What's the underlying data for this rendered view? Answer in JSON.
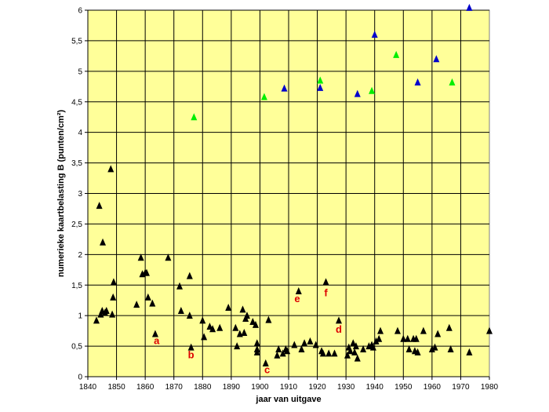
{
  "chart_data": {
    "type": "scatter",
    "title": "",
    "xlabel": "jaar van uitgave",
    "ylabel": "numerieke kaartbelasting B (punten/cm²)",
    "xlim": [
      1840,
      1980
    ],
    "ylim": [
      0,
      6
    ],
    "x_ticks": [
      1840,
      1850,
      1860,
      1870,
      1880,
      1890,
      1900,
      1910,
      1920,
      1930,
      1940,
      1950,
      1960,
      1970,
      1980
    ],
    "y_ticks": [
      0,
      0.5,
      1,
      1.5,
      2,
      2.5,
      3,
      3.5,
      4,
      4.5,
      5,
      5.5,
      6
    ],
    "y_tick_labels": [
      "0",
      "0,5",
      "1",
      "1,5",
      "2",
      "2,5",
      "3",
      "3,5",
      "4",
      "4,5",
      "5",
      "5,5",
      "6"
    ],
    "grid": "horizontal and vertical",
    "plot_background": "#ffff99",
    "marker": "triangle",
    "series": [
      {
        "color": "#000000",
        "points": [
          [
            1843,
            0.92
          ],
          [
            1844,
            2.8
          ],
          [
            1844.5,
            1.02
          ],
          [
            1845,
            1.08
          ],
          [
            1845.2,
            2.2
          ],
          [
            1846,
            1.05
          ],
          [
            1846.5,
            1.08
          ],
          [
            1848,
            3.4
          ],
          [
            1848.5,
            1.02
          ],
          [
            1848.8,
            1.3
          ],
          [
            1849,
            1.55
          ],
          [
            1857,
            1.18
          ],
          [
            1858.5,
            1.95
          ],
          [
            1859,
            1.68
          ],
          [
            1860,
            1.7
          ],
          [
            1860.5,
            1.7
          ],
          [
            1861,
            1.3
          ],
          [
            1862.5,
            1.2
          ],
          [
            1863.5,
            0.7
          ],
          [
            1868,
            1.95
          ],
          [
            1872,
            1.48
          ],
          [
            1872.5,
            1.08
          ],
          [
            1875.5,
            1.65
          ],
          [
            1875.5,
            1.0
          ],
          [
            1876,
            0.48
          ],
          [
            1880,
            0.92
          ],
          [
            1880.5,
            0.65
          ],
          [
            1882.5,
            0.82
          ],
          [
            1883.5,
            0.78
          ],
          [
            1886,
            0.8
          ],
          [
            1889,
            1.13
          ],
          [
            1891.5,
            0.8
          ],
          [
            1892,
            0.5
          ],
          [
            1893,
            0.7
          ],
          [
            1894,
            1.1
          ],
          [
            1894.5,
            0.72
          ],
          [
            1895,
            0.95
          ],
          [
            1895.5,
            1.0
          ],
          [
            1897.5,
            0.9
          ],
          [
            1898.5,
            0.85
          ],
          [
            1899,
            0.55
          ],
          [
            1899,
            0.45
          ],
          [
            1899,
            0.4
          ],
          [
            1902,
            0.22
          ],
          [
            1903,
            0.93
          ],
          [
            1906,
            0.35
          ],
          [
            1906.5,
            0.45
          ],
          [
            1908,
            0.38
          ],
          [
            1909,
            0.45
          ],
          [
            1909.5,
            0.42
          ],
          [
            1912,
            0.52
          ],
          [
            1913.5,
            1.4
          ],
          [
            1914.5,
            0.45
          ],
          [
            1915.5,
            0.55
          ],
          [
            1917.5,
            0.58
          ],
          [
            1919.5,
            0.52
          ],
          [
            1921.5,
            0.42
          ],
          [
            1922,
            0.38
          ],
          [
            1923,
            1.55
          ],
          [
            1924,
            0.38
          ],
          [
            1926,
            0.38
          ],
          [
            1927.5,
            0.92
          ],
          [
            1930.5,
            0.35
          ],
          [
            1931,
            0.48
          ],
          [
            1931.5,
            0.42
          ],
          [
            1932.5,
            0.55
          ],
          [
            1933,
            0.4
          ],
          [
            1933.5,
            0.5
          ],
          [
            1934,
            0.3
          ],
          [
            1936,
            0.45
          ],
          [
            1938,
            0.5
          ],
          [
            1939,
            0.52
          ],
          [
            1939.5,
            0.48
          ],
          [
            1940.5,
            0.58
          ],
          [
            1941.5,
            0.62
          ],
          [
            1942,
            0.75
          ],
          [
            1948,
            0.75
          ],
          [
            1950,
            0.62
          ],
          [
            1951.5,
            0.62
          ],
          [
            1952,
            0.45
          ],
          [
            1953.5,
            0.62
          ],
          [
            1954,
            0.42
          ],
          [
            1954.5,
            0.62
          ],
          [
            1955,
            0.4
          ],
          [
            1957,
            0.75
          ],
          [
            1960,
            0.45
          ],
          [
            1961,
            0.48
          ],
          [
            1962,
            0.7
          ],
          [
            1966,
            0.8
          ],
          [
            1966.5,
            0.45
          ],
          [
            1973,
            0.4
          ],
          [
            1980,
            0.75
          ]
        ]
      },
      {
        "color": "#00ee00",
        "points": [
          [
            1877,
            4.25
          ],
          [
            1901.5,
            4.58
          ],
          [
            1921,
            4.85
          ],
          [
            1939,
            4.68
          ],
          [
            1947.5,
            5.27
          ],
          [
            1967,
            4.82
          ]
        ]
      },
      {
        "color": "#0000cc",
        "points": [
          [
            1908.5,
            4.72
          ],
          [
            1921,
            4.73
          ],
          [
            1934,
            4.63
          ],
          [
            1940,
            5.6
          ],
          [
            1955,
            4.82
          ],
          [
            1961.5,
            5.2
          ],
          [
            1973,
            6.04
          ]
        ]
      }
    ],
    "annotations": [
      {
        "text": "a",
        "x": 1864,
        "y": 0.53
      },
      {
        "text": "b",
        "x": 1876,
        "y": 0.3
      },
      {
        "text": "c",
        "x": 1902.5,
        "y": 0.06
      },
      {
        "text": "d",
        "x": 1927.5,
        "y": 0.72
      },
      {
        "text": "e",
        "x": 1913,
        "y": 1.22
      },
      {
        "text": "f",
        "x": 1923,
        "y": 1.32
      }
    ],
    "annotation_color": "#dd0000"
  }
}
